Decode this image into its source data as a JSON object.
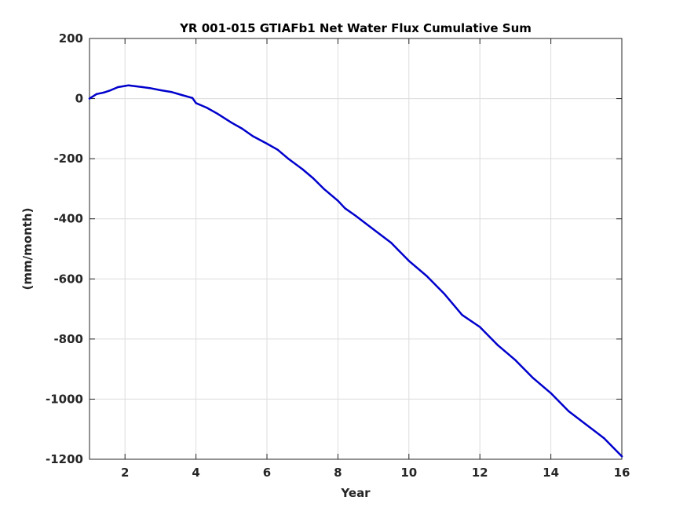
{
  "chart_data": {
    "type": "line",
    "title": "YR 001-015 GTIAFb1 Net Water Flux Cumulative Sum",
    "xlabel": "Year",
    "ylabel": "(mm/month)",
    "xlim": [
      1,
      16
    ],
    "ylim": [
      -1200,
      200
    ],
    "xticks": [
      2,
      4,
      6,
      8,
      10,
      12,
      14,
      16
    ],
    "yticks": [
      200,
      0,
      -200,
      -400,
      -600,
      -800,
      -1000,
      -1200
    ],
    "grid": true,
    "series": [
      {
        "color": "#0000cc",
        "x": [
          1.0,
          1.2,
          1.4,
          1.6,
          1.8,
          2.0,
          2.1,
          2.3,
          2.5,
          2.7,
          3.0,
          3.3,
          3.6,
          3.9,
          4.0,
          4.3,
          4.6,
          5.0,
          5.3,
          5.6,
          6.0,
          6.3,
          6.6,
          7.0,
          7.3,
          7.6,
          8.0,
          8.2,
          8.5,
          9.0,
          9.5,
          10.0,
          10.5,
          11.0,
          11.5,
          12.0,
          12.5,
          13.0,
          13.5,
          14.0,
          14.5,
          15.0,
          15.5,
          16.0
        ],
        "y": [
          0,
          15,
          20,
          28,
          38,
          42,
          44,
          41,
          38,
          35,
          28,
          22,
          12,
          2,
          -15,
          -30,
          -50,
          -80,
          -100,
          -125,
          -150,
          -170,
          -200,
          -235,
          -265,
          -300,
          -340,
          -365,
          -390,
          -435,
          -480,
          -540,
          -590,
          -650,
          -720,
          -760,
          -820,
          -870,
          -930,
          -980,
          -1040,
          -1085,
          -1130,
          -1190
        ]
      }
    ]
  }
}
